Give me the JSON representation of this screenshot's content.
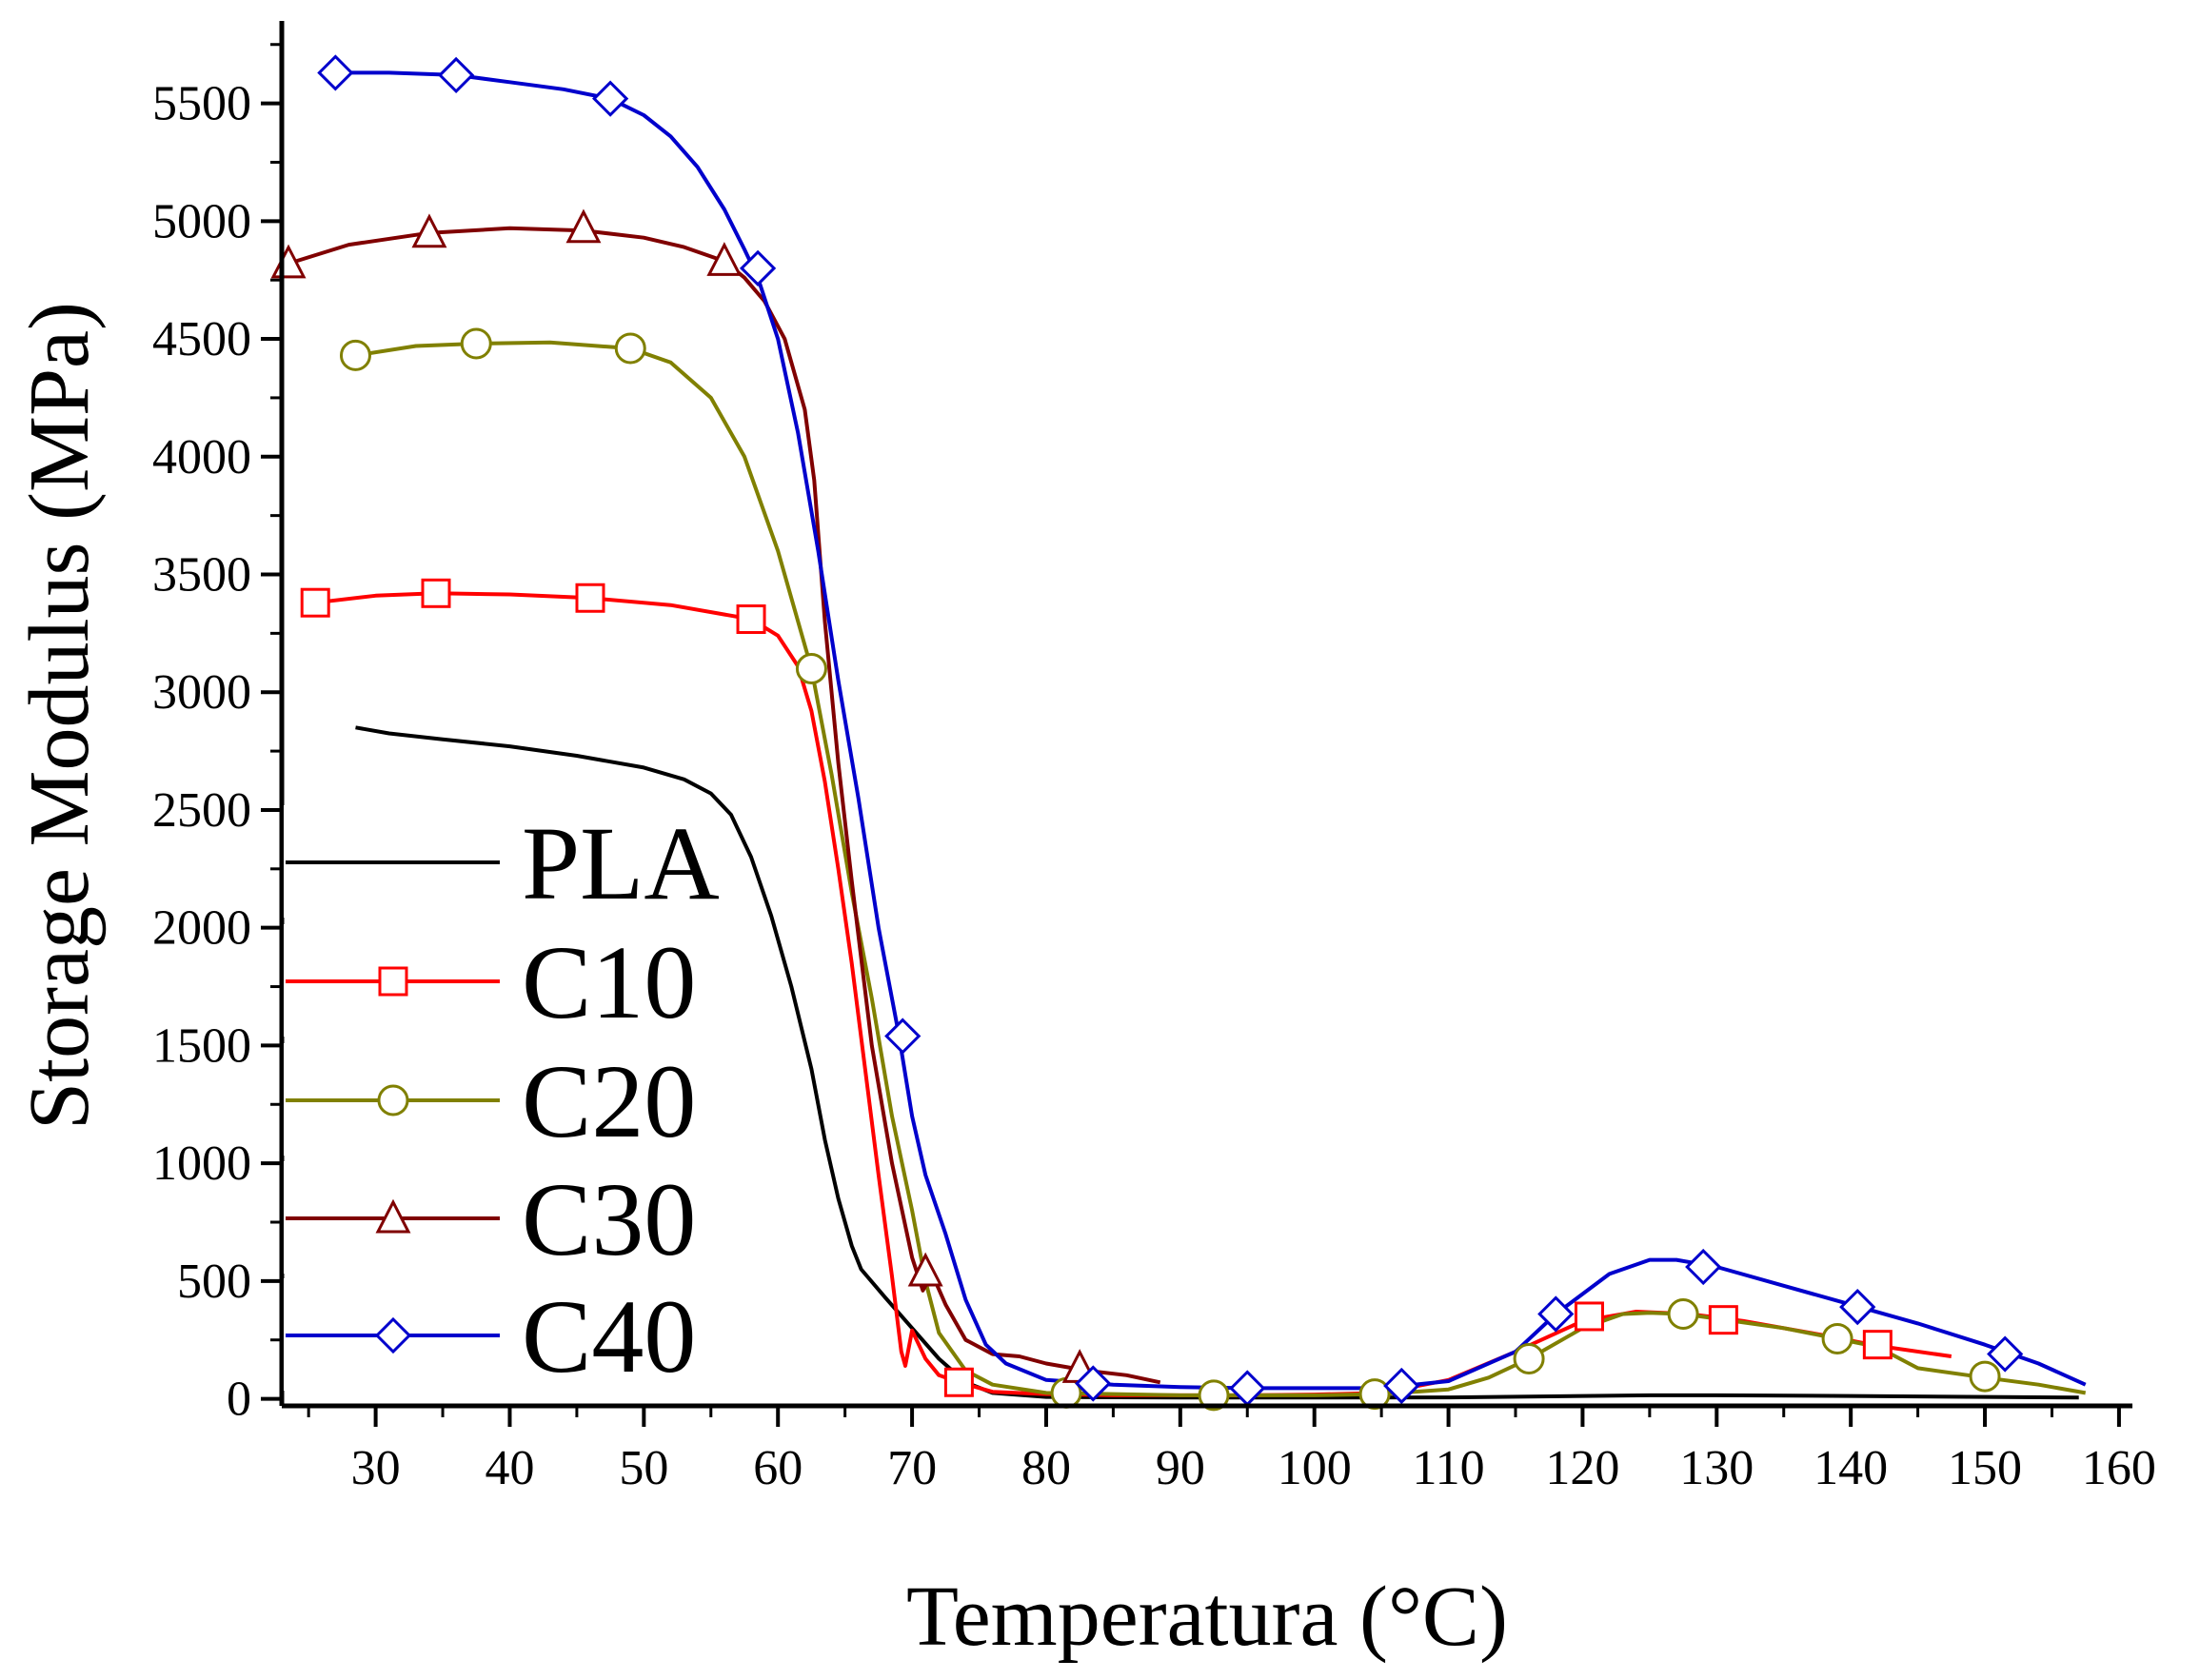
{
  "chart_data": {
    "type": "line",
    "title": "",
    "xlabel": "Temperatura (°C)",
    "ylabel": "Storage Modulus (MPa)",
    "xlim": [
      23,
      161
    ],
    "ylim": [
      -30,
      5850
    ],
    "xticks": [
      30,
      40,
      50,
      60,
      70,
      80,
      90,
      100,
      110,
      120,
      130,
      140,
      150,
      160
    ],
    "yticks": [
      0,
      500,
      1000,
      1500,
      2000,
      2500,
      3000,
      3500,
      4000,
      4500,
      5000,
      5500
    ],
    "xtick_labels": [
      "30",
      "40",
      "50",
      "60",
      "70",
      "80",
      "90",
      "100",
      "110",
      "120",
      "130",
      "140",
      "150",
      "160"
    ],
    "ytick_labels": [
      "0",
      "500",
      "1000",
      "1500",
      "2000",
      "2500",
      "3000",
      "3500",
      "4000",
      "4500",
      "5000",
      "5500"
    ],
    "legend_position": "bottom-left",
    "series": [
      {
        "name": "PLA",
        "color": "#000000",
        "marker": "none",
        "x": [
          28.5,
          31,
          35,
          40,
          45,
          50,
          53,
          55,
          56.5,
          58,
          59.5,
          61,
          62.5,
          63.5,
          64.5,
          65.5,
          66.2,
          68,
          70,
          72,
          74,
          76,
          80,
          90,
          100,
          110,
          120,
          125,
          130,
          140,
          150,
          157
        ],
        "y": [
          2850,
          2825,
          2800,
          2770,
          2730,
          2680,
          2630,
          2570,
          2480,
          2300,
          2050,
          1750,
          1400,
          1100,
          850,
          650,
          550,
          430,
          300,
          170,
          70,
          25,
          8,
          5,
          5,
          6,
          12,
          15,
          15,
          12,
          8,
          5
        ],
        "marker_x": [],
        "marker_y": []
      },
      {
        "name": "C10",
        "color": "#ff0000",
        "marker": "square",
        "x": [
          25.5,
          30,
          34.5,
          40,
          46,
          52,
          58,
          60,
          61.5,
          62.5,
          63.5,
          64.5,
          65.5,
          66.5,
          67.5,
          68.5,
          69.2,
          69.5,
          70,
          71,
          72,
          73.5,
          76,
          80,
          85,
          90,
          95,
          100,
          105,
          110,
          115,
          120,
          124,
          128,
          132,
          138,
          142,
          147.5
        ],
        "y": [
          3380,
          3410,
          3420,
          3415,
          3400,
          3370,
          3310,
          3240,
          3110,
          2920,
          2620,
          2250,
          1850,
          1400,
          950,
          520,
          200,
          140,
          290,
          170,
          100,
          70,
          30,
          20,
          15,
          15,
          15,
          18,
          25,
          80,
          200,
          330,
          370,
          360,
          330,
          270,
          225,
          180
        ],
        "marker_x": [
          25.5,
          34.5,
          46,
          58,
          73.5,
          120.5,
          130.5,
          142
        ],
        "marker_y": [
          3380,
          3420,
          3400,
          3310,
          70,
          350,
          335,
          230
        ]
      },
      {
        "name": "C20",
        "color": "#808000",
        "marker": "circle",
        "x": [
          28.5,
          33,
          37.5,
          43,
          49,
          52,
          55,
          57.5,
          60,
          62.5,
          64,
          65.5,
          67,
          68.5,
          70,
          71,
          72,
          74,
          76,
          80,
          85,
          90,
          95,
          100,
          105,
          110,
          113,
          116,
          120,
          123,
          125,
          127.5,
          130,
          135,
          139,
          142,
          145,
          150,
          154,
          157.5
        ],
        "y": [
          4430,
          4470,
          4480,
          4485,
          4460,
          4400,
          4250,
          4000,
          3600,
          3100,
          2650,
          2150,
          1700,
          1200,
          800,
          500,
          280,
          120,
          60,
          25,
          20,
          15,
          15,
          15,
          20,
          40,
          90,
          170,
          300,
          360,
          365,
          360,
          340,
          300,
          255,
          220,
          130,
          90,
          60,
          25
        ],
        "marker_x": [
          28.5,
          37.5,
          49,
          62.5,
          81.5,
          92.5,
          104.5,
          116,
          127.5,
          139,
          150
        ],
        "marker_y": [
          4430,
          4480,
          4460,
          3100,
          25,
          15,
          20,
          170,
          360,
          255,
          95
        ]
      },
      {
        "name": "C30",
        "color": "#800000",
        "marker": "triangle",
        "x": [
          23.5,
          28,
          34,
          40,
          45.5,
          50,
          53,
          56,
          57.5,
          59,
          60.5,
          62,
          62.7,
          63.5,
          64.5,
          65.5,
          67,
          68.5,
          70,
          70.8,
          71.5,
          72.5,
          74,
          76,
          78,
          80,
          83,
          86,
          88.5
        ],
        "y": [
          4820,
          4900,
          4950,
          4970,
          4960,
          4930,
          4890,
          4830,
          4760,
          4660,
          4500,
          4200,
          3900,
          3300,
          2700,
          2200,
          1500,
          1000,
          600,
          460,
          530,
          400,
          250,
          190,
          180,
          150,
          120,
          100,
          70
        ],
        "marker_x": [
          23.5,
          34,
          45.5,
          56,
          71,
          82.5
        ],
        "marker_y": [
          4820,
          4950,
          4970,
          4830,
          540,
          130
        ]
      },
      {
        "name": "C40",
        "color": "#0000cc",
        "marker": "diamond",
        "x": [
          27,
          31,
          36,
          40,
          44,
          47.5,
          50,
          52,
          54,
          56,
          57.5,
          58.5,
          60,
          61.5,
          63,
          64.5,
          66,
          67.5,
          69,
          70,
          71,
          72.5,
          74,
          75.5,
          77,
          80,
          85,
          90,
          95,
          100,
          105,
          110,
          115,
          118,
          122,
          125,
          127,
          130,
          135,
          140,
          145,
          150,
          154,
          157.5
        ],
        "y": [
          5630,
          5630,
          5620,
          5590,
          5560,
          5520,
          5450,
          5360,
          5230,
          5050,
          4880,
          4760,
          4500,
          4100,
          3600,
          3050,
          2550,
          2000,
          1550,
          1200,
          950,
          700,
          420,
          230,
          150,
          80,
          60,
          50,
          45,
          45,
          45,
          75,
          200,
          360,
          530,
          590,
          590,
          560,
          480,
          400,
          320,
          230,
          150,
          60
        ],
        "marker_x": [
          27,
          36,
          47.5,
          58.5,
          69.3,
          83.5,
          95,
          106.5,
          118,
          129,
          140.5,
          151.5
        ],
        "marker_y": [
          5630,
          5620,
          5520,
          4800,
          1540,
          65,
          45,
          55,
          360,
          560,
          390,
          190
        ]
      }
    ]
  }
}
